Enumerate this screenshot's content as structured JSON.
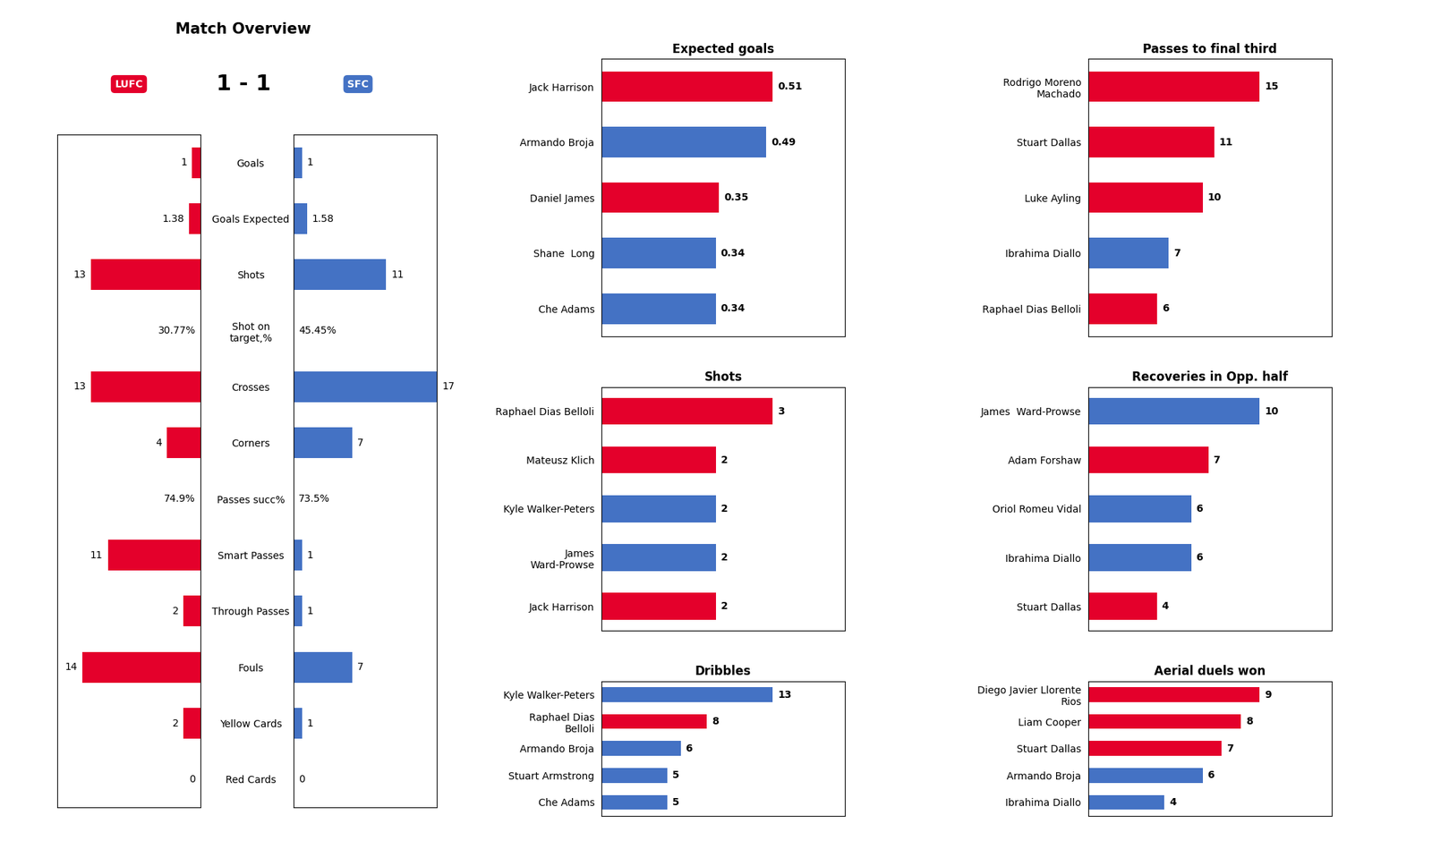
{
  "chart_data": [
    {
      "type": "bar",
      "orientation": "horizontal",
      "title": "Match Overview",
      "subtitle": "1 - 1",
      "annotations": [
        {
          "text": "LUFC"
        },
        {
          "text": "SFC"
        }
      ],
      "categories": [
        "Goals",
        "Goals Expected",
        "Shots",
        "Shot on\ntarget,%",
        "Crosses",
        "Corners",
        "Passes succ%",
        "Smart Passes",
        "Through Passes",
        "Fouls",
        "Yellow Cards",
        "Red Cards"
      ],
      "series": [
        {
          "color": "#e4002b",
          "values": [
            1,
            1.38,
            13,
            null,
            13,
            4,
            null,
            11,
            2,
            14,
            2,
            0
          ],
          "value_labels": [
            "1",
            "1.38",
            "13",
            "30.77%",
            "13",
            "4",
            "74.9%",
            "11",
            "2",
            "14",
            "2",
            "0"
          ]
        },
        {
          "color": "#4472c4",
          "values": [
            1,
            1.58,
            11,
            null,
            17,
            7,
            null,
            1,
            1,
            7,
            1,
            0
          ],
          "value_labels": [
            "1",
            "1.58",
            "11",
            "45.45%",
            "17",
            "7",
            "73.5%",
            "1",
            "1",
            "7",
            "1",
            "0"
          ]
        }
      ],
      "xlim": [
        0,
        17
      ],
      "data_labels": true,
      "tick_labels": "y"
    },
    {
      "type": "bar",
      "orientation": "horizontal",
      "title": "Expected goals",
      "categories": [
        "Jack Harrison",
        "Armando Broja",
        "Daniel James",
        "Shane  Long",
        "Che Adams"
      ],
      "values": [
        0.51,
        0.49,
        0.35,
        0.34,
        0.34
      ],
      "colors": [
        "#e4002b",
        "#4472c4",
        "#e4002b",
        "#4472c4",
        "#4472c4"
      ],
      "xlim": [
        0,
        0.7242
      ],
      "data_labels": true,
      "tick_labels": "y"
    },
    {
      "type": "bar",
      "orientation": "horizontal",
      "title": "Shots",
      "categories": [
        "Raphael Dias Belloli",
        "Mateusz Klich",
        "Kyle Walker-Peters",
        "James\nWard-Prowse",
        "Jack Harrison"
      ],
      "values": [
        3,
        2,
        2,
        2,
        2
      ],
      "colors": [
        "#e4002b",
        "#e4002b",
        "#4472c4",
        "#4472c4",
        "#e4002b"
      ],
      "xlim": [
        0,
        4.26
      ],
      "data_labels": true,
      "tick_labels": "y"
    },
    {
      "type": "bar",
      "orientation": "horizontal",
      "title": "Dribbles",
      "categories": [
        "Kyle Walker-Peters",
        "Raphael Dias\nBelloli",
        "Armando Broja",
        "Stuart Armstrong",
        "Che Adams"
      ],
      "values": [
        13,
        8,
        6,
        5,
        5
      ],
      "colors": [
        "#4472c4",
        "#e4002b",
        "#4472c4",
        "#4472c4",
        "#4472c4"
      ],
      "xlim": [
        0,
        18.46
      ],
      "data_labels": true,
      "tick_labels": "y"
    },
    {
      "type": "bar",
      "orientation": "horizontal",
      "title": "Passes to final third",
      "categories": [
        "Rodrigo Moreno\nMachado",
        "Stuart Dallas",
        "Luke Ayling",
        "Ibrahima Diallo",
        "Raphael Dias Belloli"
      ],
      "values": [
        15,
        11,
        10,
        7,
        6
      ],
      "colors": [
        "#e4002b",
        "#e4002b",
        "#e4002b",
        "#4472c4",
        "#e4002b"
      ],
      "xlim": [
        0,
        21.3
      ],
      "data_labels": true,
      "tick_labels": "y"
    },
    {
      "type": "bar",
      "orientation": "horizontal",
      "title": "Recoveries in Opp. half",
      "categories": [
        "James  Ward-Prowse",
        "Adam Forshaw",
        "Oriol Romeu Vidal",
        "Ibrahima Diallo",
        "Stuart Dallas"
      ],
      "values": [
        10,
        7,
        6,
        6,
        4
      ],
      "colors": [
        "#4472c4",
        "#e4002b",
        "#4472c4",
        "#4472c4",
        "#e4002b"
      ],
      "xlim": [
        0,
        14.2
      ],
      "data_labels": true,
      "tick_labels": "y"
    },
    {
      "type": "bar",
      "orientation": "horizontal",
      "title": "Aerial duels won",
      "categories": [
        "Diego Javier Llorente\nRios",
        "Liam Cooper",
        "Stuart Dallas",
        "Armando Broja",
        "Ibrahima Diallo"
      ],
      "values": [
        9,
        8,
        7,
        6,
        4
      ],
      "colors": [
        "#e4002b",
        "#e4002b",
        "#e4002b",
        "#4472c4",
        "#4472c4"
      ],
      "xlim": [
        0,
        12.78
      ],
      "data_labels": true,
      "tick_labels": "y"
    }
  ]
}
